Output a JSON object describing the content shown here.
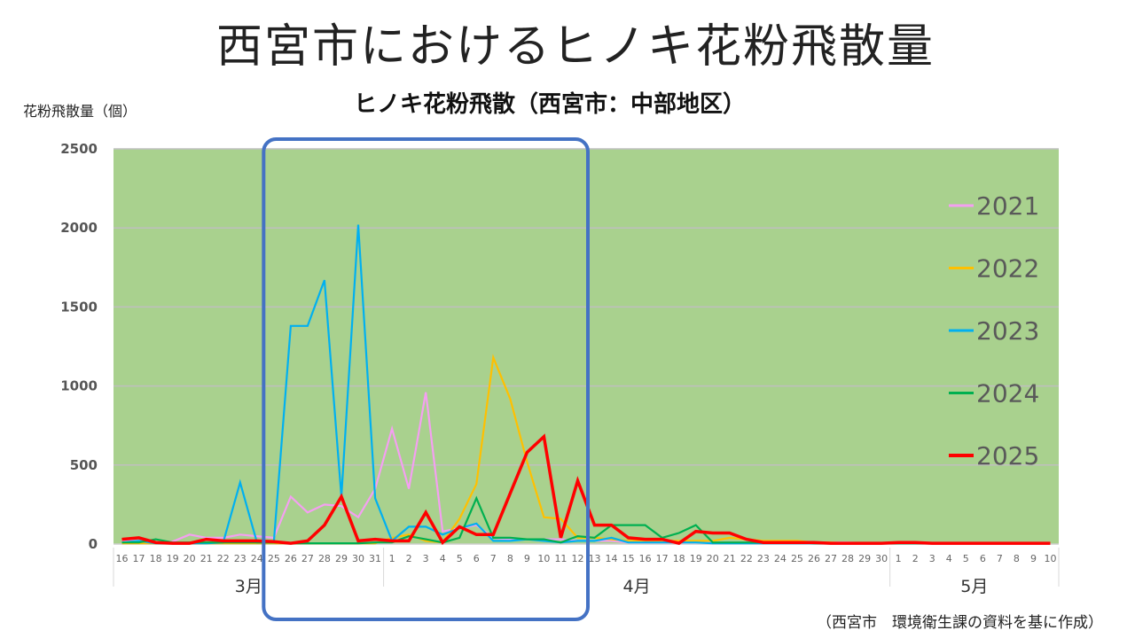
{
  "header": {
    "main_title": "西宮市におけるヒノキ花粉飛散量",
    "y_unit": "花粉飛散量（個）",
    "source": "（西宮市　環境衛生課の資料を基に作成）"
  },
  "colors": {
    "plot_bg": "#a9d18e",
    "highlight_box": "#4472c4",
    "grid": "#bfbfbf"
  },
  "chart_data": {
    "type": "line",
    "title": "ヒノキ花粉飛散（西宮市：中部地区）",
    "ylabel": "花粉飛散量（個）",
    "ylim": [
      0,
      2500
    ],
    "yticks": [
      "0",
      "500",
      "1000",
      "1500",
      "2000",
      "2500"
    ],
    "grid": "horizontal",
    "legend": "right",
    "categories": [
      "16",
      "17",
      "18",
      "19",
      "20",
      "21",
      "22",
      "23",
      "24",
      "25",
      "26",
      "27",
      "28",
      "29",
      "30",
      "31",
      "1",
      "2",
      "3",
      "4",
      "5",
      "6",
      "7",
      "8",
      "9",
      "10",
      "11",
      "12",
      "13",
      "14",
      "15",
      "16",
      "17",
      "18",
      "19",
      "20",
      "21",
      "22",
      "23",
      "24",
      "25",
      "26",
      "27",
      "28",
      "29",
      "30",
      "1",
      "2",
      "3",
      "4",
      "5",
      "6",
      "7",
      "8",
      "9",
      "10"
    ],
    "months": [
      {
        "label": "3月",
        "start": 0,
        "end": 15
      },
      {
        "label": "4月",
        "start": 16,
        "end": 45
      },
      {
        "label": "5月",
        "start": 46,
        "end": 55
      }
    ],
    "highlight": {
      "start": 9,
      "end": 27
    },
    "series": [
      {
        "name": "2021",
        "color": "#f49ff1",
        "values": [
          20,
          20,
          10,
          15,
          60,
          40,
          40,
          60,
          50,
          40,
          300,
          200,
          250,
          240,
          170,
          350,
          730,
          350,
          960,
          80,
          100,
          120,
          40,
          30,
          30,
          30,
          30,
          20,
          20,
          20,
          10,
          10,
          10,
          10,
          10,
          10,
          10,
          10,
          10,
          10,
          10,
          10,
          10,
          10,
          5,
          5,
          5,
          5,
          5,
          5,
          5,
          5,
          5,
          5,
          5,
          5
        ]
      },
      {
        "name": "2022",
        "color": "#ffc000",
        "values": [
          5,
          5,
          5,
          5,
          5,
          5,
          5,
          5,
          5,
          5,
          5,
          5,
          5,
          5,
          5,
          5,
          40,
          60,
          20,
          10,
          160,
          380,
          1180,
          920,
          520,
          170,
          160,
          40,
          40,
          30,
          20,
          20,
          20,
          20,
          20,
          20,
          40,
          30,
          20,
          20,
          20,
          10,
          10,
          5,
          5,
          5,
          5,
          5,
          5,
          5,
          5,
          5,
          5,
          5,
          5,
          5
        ]
      },
      {
        "name": "2023",
        "color": "#00b0f0",
        "values": [
          10,
          20,
          5,
          5,
          5,
          5,
          10,
          390,
          10,
          10,
          1380,
          1380,
          1670,
          300,
          2020,
          290,
          20,
          110,
          110,
          60,
          100,
          130,
          20,
          20,
          30,
          20,
          10,
          20,
          20,
          40,
          10,
          10,
          10,
          10,
          10,
          5,
          5,
          5,
          5,
          5,
          5,
          5,
          5,
          5,
          5,
          5,
          5,
          5,
          5,
          5,
          5,
          5,
          5,
          5,
          5,
          5
        ]
      },
      {
        "name": "2024",
        "color": "#00b050",
        "values": [
          10,
          10,
          30,
          10,
          10,
          10,
          10,
          10,
          10,
          10,
          5,
          5,
          5,
          5,
          5,
          10,
          10,
          50,
          30,
          10,
          40,
          290,
          40,
          40,
          30,
          30,
          10,
          50,
          40,
          120,
          120,
          120,
          40,
          70,
          120,
          10,
          10,
          10,
          10,
          10,
          10,
          5,
          5,
          5,
          5,
          5,
          5,
          5,
          5,
          5,
          5,
          5,
          5,
          5,
          5,
          5
        ]
      },
      {
        "name": "2025",
        "color": "#ff0000",
        "values": [
          30,
          40,
          10,
          5,
          5,
          30,
          20,
          20,
          20,
          15,
          5,
          20,
          120,
          300,
          20,
          30,
          20,
          20,
          200,
          10,
          110,
          60,
          60,
          320,
          580,
          680,
          40,
          400,
          120,
          120,
          40,
          30,
          30,
          5,
          80,
          70,
          70,
          30,
          10,
          10,
          10,
          10,
          5,
          5,
          5,
          5,
          10,
          10,
          5,
          5,
          5,
          5,
          5,
          5,
          5,
          5
        ]
      }
    ]
  }
}
